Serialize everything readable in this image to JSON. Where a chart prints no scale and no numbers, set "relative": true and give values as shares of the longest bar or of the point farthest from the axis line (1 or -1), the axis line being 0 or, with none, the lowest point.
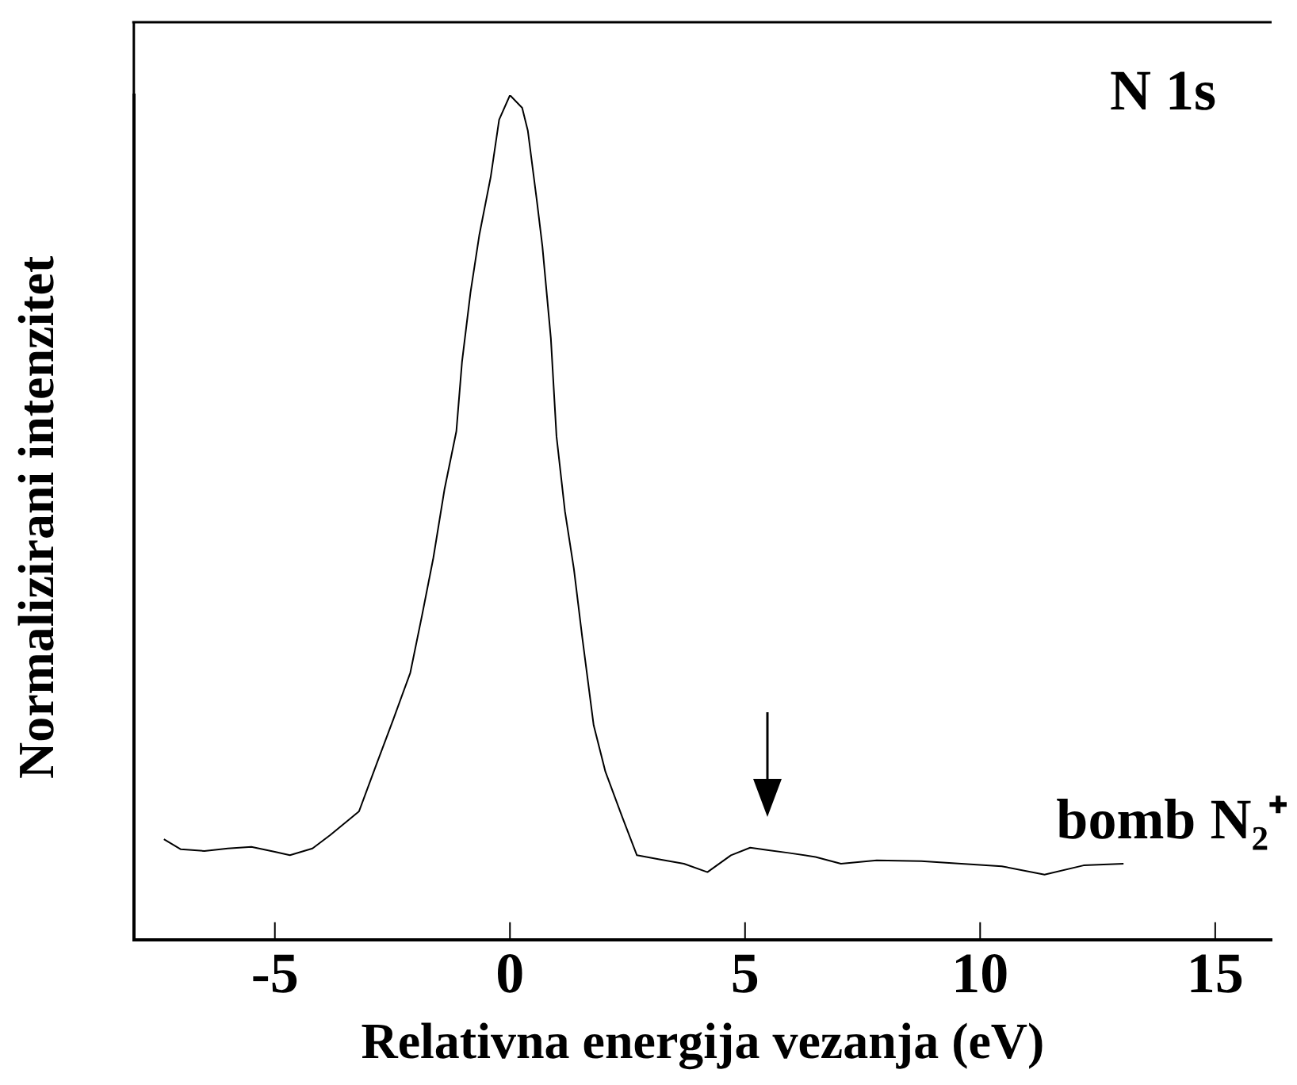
{
  "chart_data": {
    "type": "line",
    "relative": true,
    "xlabel": "Relativna energija vezanja (eV)",
    "ylabel": "Normalizirani intenzitet",
    "xlim": [
      -8,
      16.2
    ],
    "xticks": [
      -5,
      0,
      5,
      10,
      15
    ],
    "color": "#000000",
    "grid": false,
    "legend": false,
    "marker": "none",
    "annotations": [
      "N 1s",
      "bomb N₂⁺"
    ],
    "x": [
      -7.36,
      -7,
      -6.5,
      -6,
      -5.5,
      -5,
      -4.68,
      -4.2,
      -3.82,
      -3.21,
      -2.85,
      -2.48,
      -2.12,
      -1.87,
      -1.63,
      -1.39,
      -1.14,
      -1.02,
      -0.84,
      -0.65,
      -0.41,
      -0.23,
      0,
      0.26,
      0.38,
      0.57,
      0.69,
      0.87,
      0.99,
      1.17,
      1.36,
      1.54,
      1.78,
      2.03,
      2.39,
      2.7,
      3.2,
      3.7,
      4.2,
      4.7,
      5.11,
      5.5,
      5.9,
      6.5,
      7.04,
      7.8,
      8.75,
      9.6,
      10.46,
      11.37,
      12.2,
      13.05
    ],
    "values": [
      0.119,
      0.107,
      0.105,
      0.108,
      0.11,
      0.104,
      0.1,
      0.108,
      0.124,
      0.152,
      0.206,
      0.261,
      0.316,
      0.384,
      0.452,
      0.534,
      0.602,
      0.684,
      0.766,
      0.835,
      0.903,
      0.971,
      1,
      0.985,
      0.958,
      0.876,
      0.821,
      0.712,
      0.596,
      0.507,
      0.439,
      0.357,
      0.254,
      0.199,
      0.145,
      0.1,
      0.095,
      0.09,
      0.08,
      0.1,
      0.109,
      0.106,
      0.103,
      0.098,
      0.09,
      0.094,
      0.093,
      0.09,
      0.087,
      0.077,
      0.088,
      0.09
    ]
  }
}
